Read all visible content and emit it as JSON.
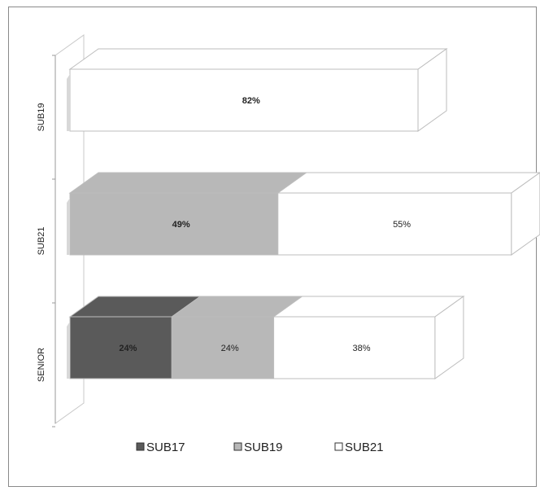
{
  "chart_data": {
    "type": "bar",
    "orientation": "horizontal",
    "stacked": true,
    "three_d": true,
    "categories": [
      "SUB19",
      "SUB21",
      "SENIOR"
    ],
    "series": [
      {
        "name": "SUB17",
        "color": "#5a5a5a",
        "values": [
          null,
          null,
          24
        ]
      },
      {
        "name": "SUB19",
        "color": "#b8b8b8",
        "values": [
          null,
          49,
          24
        ]
      },
      {
        "name": "SUB21",
        "color": "#ffffff",
        "values": [
          82,
          55,
          38
        ]
      }
    ],
    "data_labels": [
      {
        "category": "SUB19",
        "series": "SUB21",
        "text": "82%",
        "bold": true
      },
      {
        "category": "SUB21",
        "series": "SUB19",
        "text": "49%",
        "bold": true
      },
      {
        "category": "SUB21",
        "series": "SUB21",
        "text": "55%",
        "bold": false
      },
      {
        "category": "SENIOR",
        "series": "SUB17",
        "text": "24%",
        "bold": true
      },
      {
        "category": "SENIOR",
        "series": "SUB19",
        "text": "24%",
        "bold": false
      },
      {
        "category": "SENIOR",
        "series": "SUB21",
        "text": "38%",
        "bold": false
      }
    ],
    "legend_position": "bottom",
    "grid": false,
    "title": "",
    "xlabel": "",
    "ylabel": ""
  }
}
